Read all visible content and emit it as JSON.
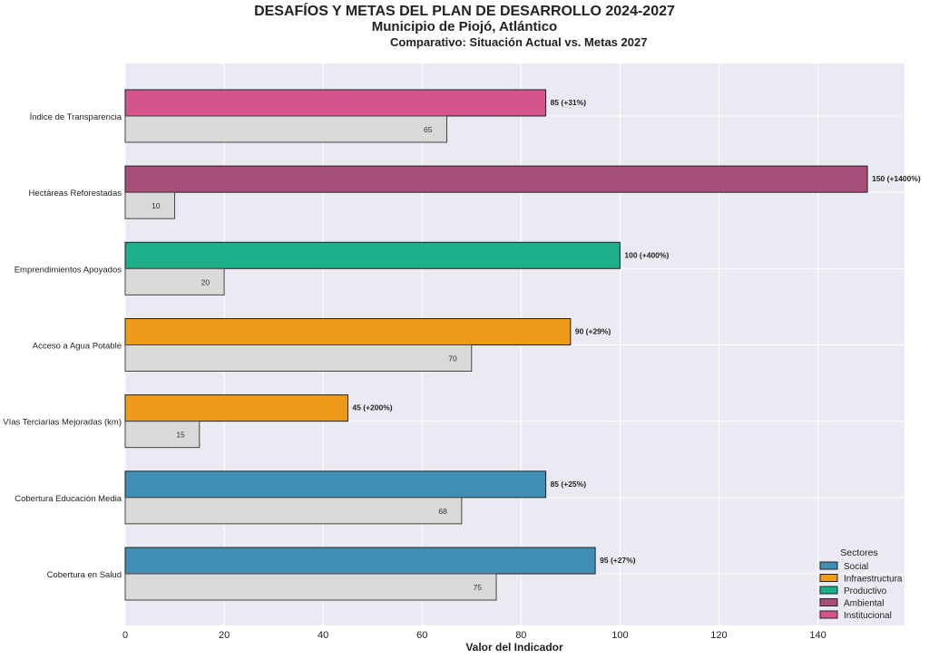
{
  "chart_data": {
    "type": "bar",
    "orientation": "horizontal",
    "title": "DESAFÍOS Y METAS DEL PLAN DE DESARROLLO 2024-2027",
    "subtitle": "Municipio de Piojó, Atlántico",
    "subtitle2": "Comparativo: Situación Actual vs. Metas 2027",
    "xlabel": "Valor del Indicador",
    "ylabel": "",
    "xlim": [
      0,
      157.5
    ],
    "xticks": [
      "0",
      "20",
      "40",
      "60",
      "80",
      "100",
      "120",
      "140"
    ],
    "grid": true,
    "categories": [
      "Cobertura en Salud",
      "Cobertura Educación Media",
      "Vías Terciarias Mejoradas (km)",
      "Acceso a Agua Potable",
      "Emprendimientos Apoyados",
      "Hectáreas Reforestadas",
      "Índice de Transparencia"
    ],
    "sectors": [
      "Social",
      "Social",
      "Infraestructura",
      "Infraestructura",
      "Productivo",
      "Ambiental",
      "Institucional"
    ],
    "series": [
      {
        "name": "Meta 2027",
        "values": [
          95,
          85,
          45,
          90,
          100,
          150,
          85
        ],
        "labels": [
          "95  (+27%)",
          "85  (+25%)",
          "45  (+200%)",
          "90  (+29%)",
          "100  (+400%)",
          "150  (+1400%)",
          "85  (+31%)"
        ]
      },
      {
        "name": "Situación Actual",
        "values": [
          75,
          68,
          15,
          70,
          20,
          10,
          65
        ],
        "labels": [
          "75",
          "68",
          "15",
          "70",
          "20",
          "10",
          "65"
        ],
        "color": "#d9d9d9"
      }
    ],
    "legend": {
      "title": "Sectores",
      "placement": "bottom-right",
      "entries": [
        {
          "label": "Social",
          "color": "#408fb4"
        },
        {
          "label": "Infraestructura",
          "color": "#ef9a1a"
        },
        {
          "label": "Productivo",
          "color": "#1daf8a"
        },
        {
          "label": "Ambiental",
          "color": "#a84e7a"
        },
        {
          "label": "Institucional",
          "color": "#d5548c"
        }
      ]
    }
  }
}
